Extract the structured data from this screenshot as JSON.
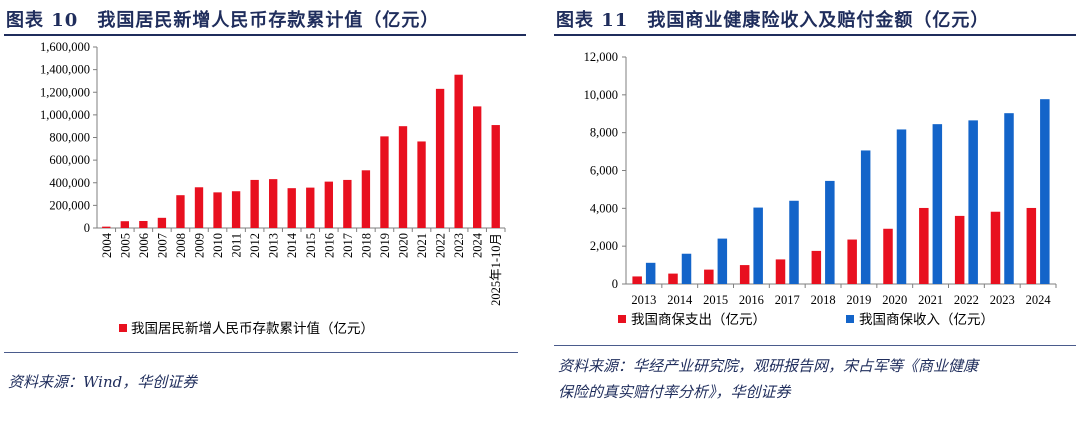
{
  "left_panel": {
    "title": "图表 10　我国居民新增人民币存款累计值（亿元）",
    "source": "资料来源：Wind，华创证券"
  },
  "right_panel": {
    "title": "图表 11　我国商业健康险收入及赔付金额（亿元）",
    "source_line1": "资料来源：华经产业研究院，观研报告网，宋占军等《商业健康",
    "source_line2": "保险的真实赔付率分析》，华创证券"
  },
  "colors": {
    "red": "#e8101f",
    "blue": "#1364c9",
    "title": "#1f2d5c"
  },
  "chart_data": [
    {
      "type": "bar",
      "title": "我国居民新增人民币存款累计值（亿元）",
      "categories": [
        "2004",
        "2005",
        "2006",
        "2007",
        "2008",
        "2009",
        "2010",
        "2011",
        "2012",
        "2013",
        "2014",
        "2015",
        "2016",
        "2017",
        "2018",
        "2019",
        "2020",
        "2021",
        "2022",
        "2023",
        "2024",
        "2025年1-10月"
      ],
      "series": [
        {
          "name": "我国居民新增人民币存款累计值（亿元）",
          "color": "#e8101f",
          "values": [
            12000,
            60000,
            62000,
            90000,
            290000,
            360000,
            315000,
            325000,
            425000,
            432000,
            352000,
            357000,
            410000,
            425000,
            510000,
            810000,
            900000,
            765000,
            1230000,
            1355000,
            1075000,
            910000
          ]
        }
      ],
      "ylim": [
        0,
        1600000
      ],
      "yticks": [
        0,
        200000,
        400000,
        600000,
        800000,
        1000000,
        1200000,
        1400000,
        1600000
      ],
      "ytick_labels": [
        "0",
        "200,000",
        "400,000",
        "600,000",
        "800,000",
        "1,000,000",
        "1,200,000",
        "1,400,000",
        "1,600,000"
      ],
      "legend_position": "bottom",
      "grid": false
    },
    {
      "type": "bar",
      "title": "我国商业健康险收入及赔付金额（亿元）",
      "categories": [
        "2013",
        "2014",
        "2015",
        "2016",
        "2017",
        "2018",
        "2019",
        "2020",
        "2021",
        "2022",
        "2023",
        "2024"
      ],
      "series": [
        {
          "name": "我国商保支出（亿元）",
          "color": "#e8101f",
          "values": [
            400,
            550,
            760,
            1000,
            1300,
            1750,
            2350,
            2920,
            4020,
            3600,
            3820,
            4020
          ]
        },
        {
          "name": "我国商保收入（亿元）",
          "color": "#1364c9",
          "values": [
            1120,
            1600,
            2400,
            4040,
            4400,
            5450,
            7060,
            8170,
            8450,
            8650,
            9030,
            9770
          ]
        }
      ],
      "ylim": [
        0,
        12000
      ],
      "yticks": [
        0,
        2000,
        4000,
        6000,
        8000,
        10000,
        12000
      ],
      "ytick_labels": [
        "0",
        "2,000",
        "4,000",
        "6,000",
        "8,000",
        "10,000",
        "12,000"
      ],
      "legend_position": "bottom",
      "grid": false
    }
  ]
}
